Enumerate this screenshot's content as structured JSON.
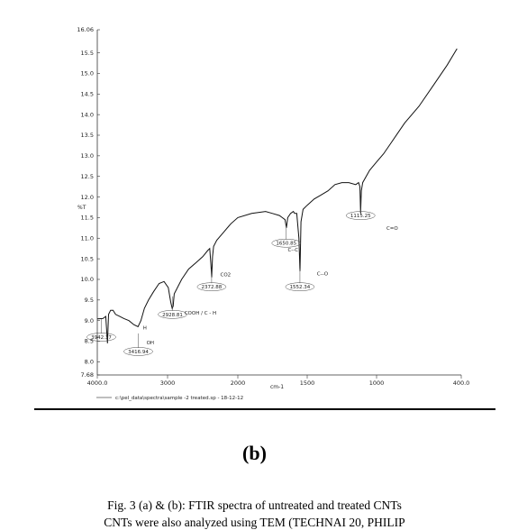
{
  "chart_data": {
    "type": "line",
    "xlabel": "cm-1",
    "ylabel": "%T",
    "xlim": [
      4000,
      400
    ],
    "ylim": [
      7.68,
      16.06
    ],
    "x_ticks": [
      "4000.0",
      "3000",
      "2000",
      "1500",
      "1000",
      "400.0"
    ],
    "x_tick_values": [
      4000,
      3000,
      2000,
      1500,
      1000,
      400
    ],
    "y_ticks": [
      "16.06",
      "15.5",
      "15.0",
      "14.5",
      "14.0",
      "13.5",
      "13.0",
      "12.5",
      "12.0",
      "11.5",
      "11.0",
      "10.5",
      "10.0",
      "9.5",
      "9.0",
      "8.5",
      "8.0",
      "7.68"
    ],
    "y_tick_values": [
      16.06,
      15.5,
      15.0,
      14.5,
      14.0,
      13.5,
      13.0,
      12.5,
      12.0,
      11.5,
      11.0,
      10.5,
      10.0,
      9.5,
      9.0,
      8.5,
      8.0,
      7.68
    ],
    "legend": "c:\\pel_data\\spectra\\sample -2 treated.sp - 18-12-12",
    "series": [
      {
        "x": [
          4000,
          3920,
          3880,
          3855,
          3840,
          3810,
          3775,
          3740,
          3680,
          3620,
          3550,
          3480,
          3420,
          3380,
          3330,
          3270,
          3200,
          3120,
          3050,
          2990,
          2955,
          2935,
          2920,
          2905,
          2800,
          2700,
          2600,
          2500,
          2430,
          2400,
          2385,
          2372,
          2360,
          2345,
          2300,
          2200,
          2100,
          2000,
          1900,
          1800,
          1750,
          1700,
          1680,
          1660,
          1650,
          1640,
          1620,
          1600,
          1590,
          1575,
          1560,
          1552,
          1545,
          1530,
          1500,
          1450,
          1400,
          1350,
          1300,
          1250,
          1200,
          1150,
          1130,
          1120,
          1115,
          1110,
          1100,
          1050,
          1000,
          950,
          900,
          850,
          800,
          700,
          600,
          500,
          430
        ],
        "y": [
          9.04,
          9.05,
          9.1,
          8.45,
          9.15,
          9.25,
          9.25,
          9.15,
          9.1,
          9.05,
          9.0,
          8.9,
          8.85,
          9.0,
          9.3,
          9.5,
          9.7,
          9.9,
          9.95,
          9.8,
          9.45,
          9.3,
          9.35,
          9.65,
          10.0,
          10.25,
          10.4,
          10.55,
          10.7,
          10.75,
          10.4,
          10.05,
          10.55,
          10.8,
          10.95,
          11.15,
          11.35,
          11.5,
          11.6,
          11.65,
          11.6,
          11.55,
          11.5,
          11.45,
          11.25,
          11.5,
          11.6,
          11.65,
          11.6,
          11.6,
          11.0,
          10.2,
          11.4,
          11.7,
          11.8,
          11.95,
          12.05,
          12.15,
          12.3,
          12.35,
          12.35,
          12.3,
          12.35,
          12.25,
          11.6,
          12.15,
          12.35,
          12.65,
          12.85,
          13.05,
          13.3,
          13.55,
          13.8,
          14.2,
          14.7,
          15.2,
          15.6
        ]
      }
    ],
    "annotations": [
      {
        "peak": "3942.37",
        "x": 3942.37,
        "y": 8.6
      },
      {
        "peak": "3416.94",
        "x": 3416.94,
        "y": 8.25
      },
      {
        "peak": "2928.81",
        "x": 2928.81,
        "y": 9.15
      },
      {
        "peak": "2372.88",
        "x": 2372.88,
        "y": 9.82
      },
      {
        "peak": "1650.85",
        "x": 1650.85,
        "y": 10.88
      },
      {
        "peak": "1552.34",
        "x": 1552.34,
        "y": 9.82
      },
      {
        "peak": "1115.25",
        "x": 1115.25,
        "y": 11.55
      }
    ],
    "group_labels": [
      {
        "text": "H",
        "x": 3350,
        "y": 8.78
      },
      {
        "text": "OH",
        "x": 3300,
        "y": 8.42
      },
      {
        "text": "COOH / C - H",
        "x": 2760,
        "y": 9.15
      },
      {
        "text": "CO2",
        "x": 2250,
        "y": 10.08
      },
      {
        "text": "C--C",
        "x": 1640,
        "y": 10.68
      },
      {
        "text": "C--O",
        "x": 1430,
        "y": 10.1
      },
      {
        "text": "C=O",
        "x": 930,
        "y": 11.2
      }
    ]
  },
  "figure_label": "(b)",
  "caption": "Fig. 3 (a) & (b): FTIR spectra of untreated and treated CNTs",
  "caption_cut_line": "CNTs were also analyzed using TEM (TECHNAI 20, PHILIP"
}
